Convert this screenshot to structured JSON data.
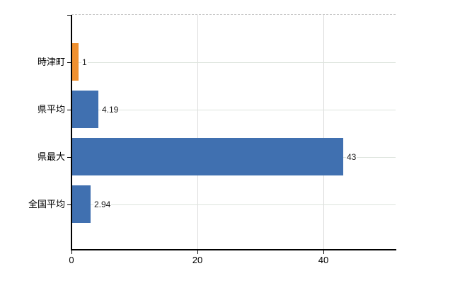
{
  "chart_data": {
    "type": "bar",
    "orientation": "horizontal",
    "title": "",
    "xlabel": "",
    "ylabel": "",
    "categories": [
      "時津町",
      "県平均",
      "県最大",
      "全国平均"
    ],
    "values": [
      1,
      4.19,
      43,
      2.94
    ],
    "value_labels": [
      "1",
      "4.19",
      "43",
      "2.94"
    ],
    "series": [
      {
        "name": "value",
        "values": [
          1,
          4.19,
          43,
          2.94
        ],
        "colors": [
          "#EF9030",
          "#4070B0",
          "#4070B0",
          "#4070B0"
        ]
      }
    ],
    "x_ticks": [
      0,
      20,
      40
    ],
    "x_tick_labels": [
      "0",
      "20",
      "40"
    ],
    "xlim": [
      0,
      51.5
    ],
    "grid": true,
    "legend_position": "none"
  },
  "colors": {
    "bar_highlight": "#EF9030",
    "bar_default": "#4070B0",
    "axis": "#000000",
    "h_gridline": "#dde4dd",
    "v_gridline": "#dadada",
    "top_border": "#c9c9c9",
    "background": "#ffffff"
  }
}
